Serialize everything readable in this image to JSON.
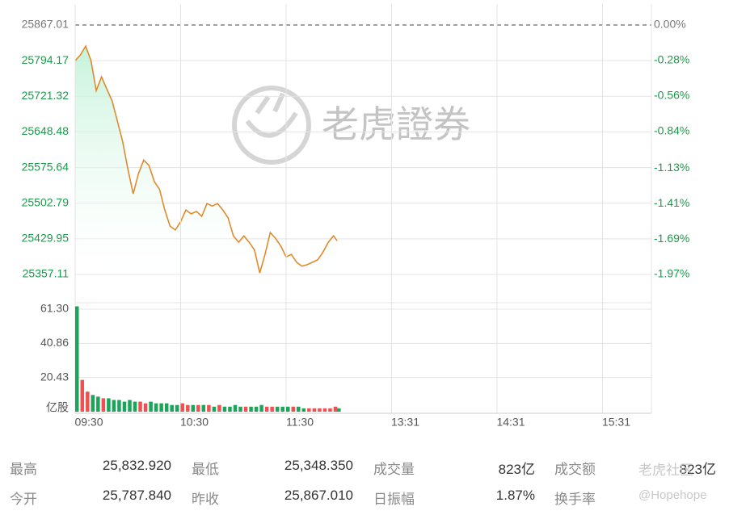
{
  "chart_data": [
    {
      "type": "line",
      "x": [
        "09:30",
        "09:33",
        "09:36",
        "09:39",
        "09:42",
        "09:45",
        "09:48",
        "09:51",
        "09:54",
        "09:57",
        "10:00",
        "10:03",
        "10:06",
        "10:09",
        "10:12",
        "10:15",
        "10:18",
        "10:21",
        "10:24",
        "10:27",
        "10:30",
        "10:33",
        "10:36",
        "10:39",
        "10:42",
        "10:45",
        "10:48",
        "10:51",
        "10:54",
        "10:57",
        "11:00",
        "11:03",
        "11:06",
        "11:09",
        "11:12",
        "11:15",
        "11:18",
        "11:21",
        "11:24",
        "11:27",
        "11:30",
        "11:33",
        "11:36",
        "11:39",
        "11:42",
        "11:45",
        "11:48",
        "11:51",
        "11:54",
        "11:57",
        "11:59"
      ],
      "series": [
        {
          "color": "#e08a2c",
          "values": [
            25794,
            25806,
            25824,
            25794,
            25733,
            25761,
            25736,
            25712,
            25671,
            25629,
            25572,
            25522,
            25563,
            25591,
            25580,
            25547,
            25531,
            25489,
            25456,
            25448,
            25465,
            25489,
            25481,
            25486,
            25476,
            25502,
            25497,
            25502,
            25489,
            25473,
            25436,
            25423,
            25436,
            25423,
            25407,
            25360,
            25398,
            25443,
            25431,
            25415,
            25393,
            25398,
            25382,
            25374,
            25377,
            25382,
            25387,
            25403,
            25423,
            25436,
            25426
          ]
        }
      ],
      "ylim": [
        25357.11,
        25867.01
      ],
      "yticks": [
        {
          "value": 25867.01,
          "label": "25867.01"
        },
        25794.17,
        25721.32,
        25648.48,
        25575.64,
        25502.79,
        25429.95,
        25357.11
      ],
      "y2lim": [
        -1.97,
        0
      ],
      "y2ticks": [
        {
          "value": 0,
          "label": "0.00%"
        },
        {
          "value": -0.28,
          "label": "-0.28%"
        },
        {
          "value": -0.56,
          "label": "-0.56%"
        },
        {
          "value": -0.84,
          "label": "-0.84%"
        },
        {
          "value": -1.13,
          "label": "-1.13%"
        },
        {
          "value": -1.41,
          "label": "-1.41%"
        },
        {
          "value": -1.69,
          "label": "-1.69%"
        },
        {
          "value": -1.97,
          "label": "-1.97%"
        }
      ],
      "grid": true
    },
    {
      "type": "bar",
      "x": [
        "09:30",
        "09:33",
        "09:36",
        "09:39",
        "09:42",
        "09:45",
        "09:48",
        "09:51",
        "09:54",
        "09:57",
        "10:00",
        "10:03",
        "10:06",
        "10:09",
        "10:12",
        "10:15",
        "10:18",
        "10:21",
        "10:24",
        "10:27",
        "10:30",
        "10:33",
        "10:36",
        "10:39",
        "10:42",
        "10:45",
        "10:48",
        "10:51",
        "10:54",
        "10:57",
        "11:00",
        "11:03",
        "11:06",
        "11:09",
        "11:12",
        "11:15",
        "11:18",
        "11:21",
        "11:24",
        "11:27",
        "11:30",
        "11:33",
        "11:36",
        "11:39",
        "11:42",
        "11:45",
        "11:48",
        "11:51",
        "11:54",
        "11:57",
        "11:59"
      ],
      "values": [
        63,
        19,
        12,
        10,
        9,
        8,
        8,
        7,
        7,
        6,
        7,
        6,
        6,
        5,
        6,
        5,
        5,
        5,
        4,
        4,
        5,
        4,
        4,
        4,
        4,
        4,
        3,
        4,
        3,
        3,
        4,
        3,
        3,
        3,
        3,
        4,
        3,
        3,
        3,
        3,
        3,
        3,
        3,
        2,
        2,
        2,
        2,
        2,
        2,
        3,
        2
      ],
      "colors": [
        "#1ca55a",
        "#f0504f",
        "#f0504f",
        "#1ca55a",
        "#1ca55a",
        "#f0504f",
        "#1ca55a",
        "#1ca55a",
        "#1ca55a",
        "#1ca55a",
        "#1ca55a",
        "#1ca55a",
        "#f0504f",
        "#f0504f",
        "#1ca55a",
        "#1ca55a",
        "#1ca55a",
        "#1ca55a",
        "#1ca55a",
        "#1ca55a",
        "#f0504f",
        "#f0504f",
        "#1ca55a",
        "#f0504f",
        "#1ca55a",
        "#f0504f",
        "#1ca55a",
        "#f0504f",
        "#1ca55a",
        "#1ca55a",
        "#1ca55a",
        "#1ca55a",
        "#f0504f",
        "#1ca55a",
        "#1ca55a",
        "#1ca55a",
        "#f0504f",
        "#f0504f",
        "#1ca55a",
        "#1ca55a",
        "#1ca55a",
        "#f0504f",
        "#1ca55a",
        "#1ca55a",
        "#f0504f",
        "#f0504f",
        "#f0504f",
        "#f0504f",
        "#f0504f",
        "#f0504f",
        "#1ca55a"
      ],
      "ylim": [
        0,
        64.2
      ],
      "yticks": [
        {
          "value": 0,
          "label": "亿股"
        },
        20.43,
        40.86,
        {
          "value": 61.3,
          "label": "61.30"
        }
      ],
      "xticks": [
        "09:30",
        "10:30",
        "11:30",
        "13:31",
        "14:31",
        "15:31"
      ],
      "grid": true
    }
  ],
  "stats": {
    "rows": [
      [
        [
          "最高",
          "25,832.920"
        ],
        [
          "最低",
          "25,348.350"
        ],
        [
          "成交量",
          "823亿"
        ],
        [
          "成交额",
          "823亿"
        ]
      ],
      [
        [
          "今开",
          "25,787.840"
        ],
        [
          "昨收",
          "25,867.010"
        ],
        [
          "日振幅",
          "1.87%"
        ],
        [
          "换手率",
          ""
        ]
      ]
    ]
  },
  "watermark": "老虎證券",
  "community_watermark": [
    "老虎社区",
    "@Hopehope"
  ]
}
